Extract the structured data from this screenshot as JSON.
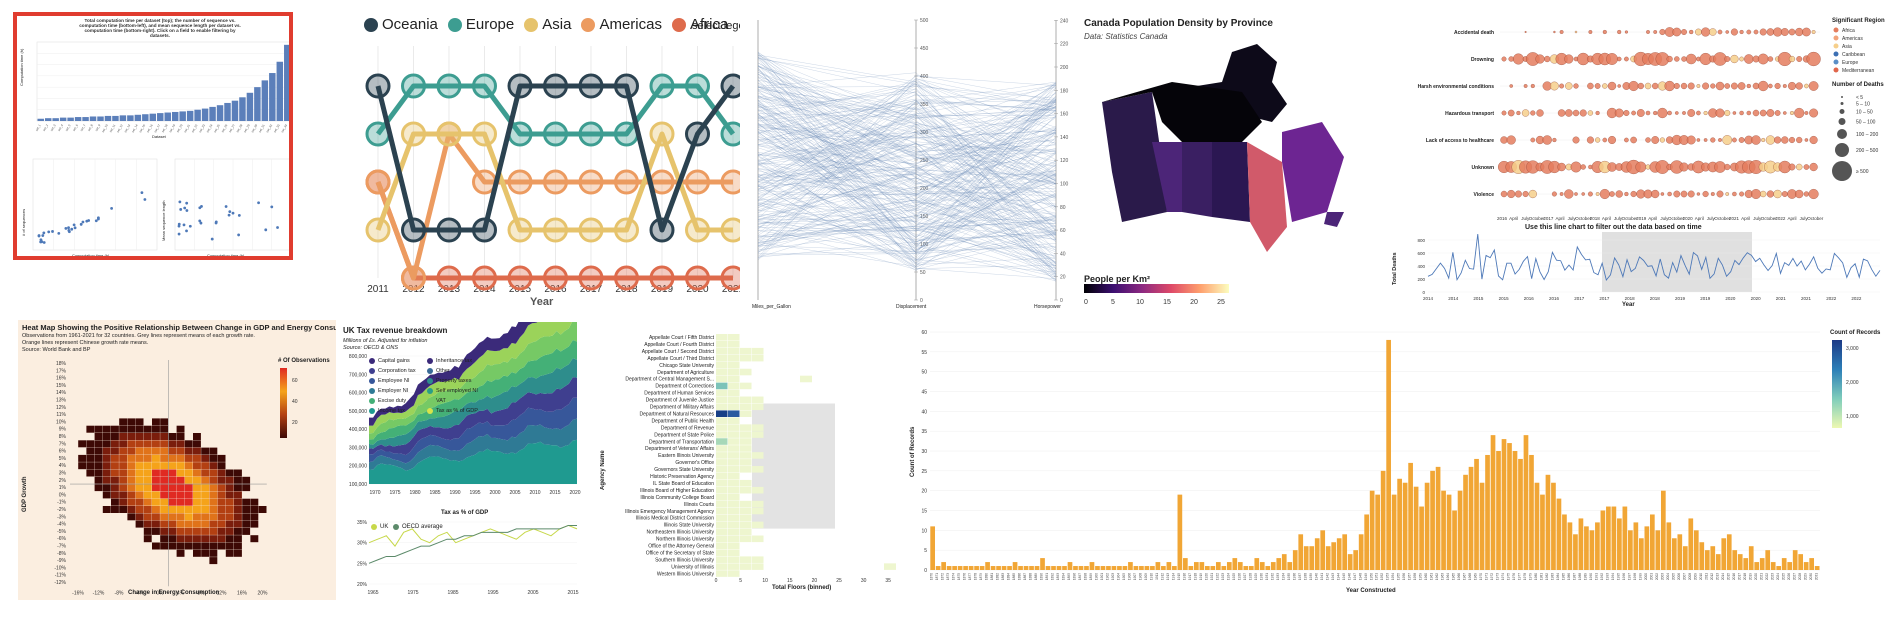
{
  "tiles": {
    "t1": {
      "title": "Total computation time per dataset (top); the number of sequence vs. computation time (bottom-left), and mean sequence length per dataset vs. computation time (bottom-right). Click on a field to enable filtering by datasets.",
      "bar_ylabel": "Computation time (h)",
      "bar_xlabel": "Dataset",
      "scatter1_ylabel": "# of sequences",
      "scatter1_xlabel": "Computation time (h)",
      "scatter2_ylabel": "Mean sequence length",
      "scatter2_xlabel": "Computation time (h)",
      "bar_values": [
        0.4,
        0.5,
        0.5,
        0.6,
        0.6,
        0.7,
        0.7,
        0.8,
        0.8,
        0.9,
        0.9,
        1,
        1,
        1.1,
        1.2,
        1.3,
        1.4,
        1.5,
        1.6,
        1.7,
        1.8,
        2,
        2.2,
        2.5,
        2.8,
        3.2,
        3.6,
        4.2,
        5,
        6,
        7.2,
        8.5,
        10.5,
        13.5
      ]
    },
    "t2": {
      "legend": [
        {
          "name": "Oceania",
          "color": "#2b4250"
        },
        {
          "name": "Europe",
          "color": "#3d9d91"
        },
        {
          "name": "Asia",
          "color": "#e6c36c"
        },
        {
          "name": "Americas",
          "color": "#ec9b60"
        },
        {
          "name": "Africa",
          "color": "#de6b4c"
        }
      ],
      "select_label": "select leger",
      "xlabel": "Year",
      "years": [
        "2011",
        "2012",
        "2013",
        "2014",
        "2015",
        "2016",
        "2017",
        "2018",
        "2019",
        "2020",
        "2021"
      ],
      "ranks": {
        "Oceania": [
          1,
          4,
          4,
          4,
          1,
          1,
          1,
          1,
          4,
          2,
          1
        ],
        "Europe": [
          2,
          1,
          1,
          1,
          2,
          2,
          2,
          2,
          1,
          1,
          2
        ],
        "Asia": [
          4,
          2,
          2,
          2,
          4,
          4,
          4,
          4,
          2,
          4,
          4
        ],
        "Americas": [
          3,
          5,
          2,
          3,
          3,
          3,
          3,
          3,
          3,
          3,
          3
        ],
        "Africa": [
          3,
          5,
          5,
          5,
          5,
          5,
          5,
          5,
          5,
          5,
          5
        ]
      }
    },
    "t3": {
      "axes": [
        "Miles_per_Gallon",
        "Displacement",
        "Horsepower"
      ],
      "mid_ticks": [
        "0",
        "50",
        "100",
        "150",
        "200",
        "250",
        "300",
        "350",
        "400",
        "450",
        "500"
      ],
      "right_ticks": [
        "0",
        "20",
        "40",
        "60",
        "80",
        "100",
        "120",
        "140",
        "160",
        "180",
        "200",
        "220",
        "240"
      ]
    },
    "t4": {
      "title": "Canada Population Density by Province",
      "subtitle": "Data: Statistics Canada",
      "legend_title": "People per Km²",
      "legend_ticks": [
        "0",
        "5",
        "10",
        "15",
        "20",
        "25"
      ]
    },
    "t5": {
      "categories": [
        "Accidental death",
        "Drowning",
        "Harsh environmental conditions",
        "Hazardous transport",
        "Lack of access to healthcare",
        "Unknown",
        "Violence"
      ],
      "legend_title": "Significant Region",
      "regions": [
        {
          "name": "Africa",
          "color": "#e47d5e"
        },
        {
          "name": "Americas",
          "color": "#f2a37b"
        },
        {
          "name": "Asia",
          "color": "#f6cf8b"
        },
        {
          "name": "Caribbean",
          "color": "#3c6fb3"
        },
        {
          "name": "Europe",
          "color": "#5a8fc7"
        },
        {
          "name": "Mediterranean",
          "color": "#e0664b"
        }
      ],
      "size_title": "Number of Deaths",
      "sizes": [
        "< 5",
        "5 – 10",
        "10 – 50",
        "50 – 100",
        "100 – 200",
        "200 – 500",
        "≥ 500"
      ],
      "top_ticks": [
        "2016",
        "April",
        "July",
        "October",
        "2017",
        "April",
        "July",
        "October",
        "2018",
        "April",
        "July",
        "October",
        "2019",
        "April",
        "July",
        "October",
        "2020",
        "April",
        "July",
        "October",
        "2021",
        "April",
        "July",
        "October",
        "2022",
        "April",
        "July",
        "October"
      ],
      "filter_title": "Use this line chart to filter out the data based on time",
      "line_ylabel": "Total Deaths",
      "line_xlabel": "Year",
      "line_yticks": [
        "0",
        "200",
        "400",
        "600",
        "800"
      ],
      "line_xticks": [
        "2014",
        "2014",
        "2015",
        "2015",
        "2016",
        "2016",
        "2017",
        "2017",
        "2018",
        "2018",
        "2019",
        "2019",
        "2020",
        "2020",
        "2021",
        "2021",
        "2022",
        "2022"
      ]
    },
    "t6": {
      "title": "Heat Map Showing the Positive Relationship Between Change in GDP and Energy Consumption",
      "note1": "Observations from 1961-2021 for 32 countries. Grey lines represent means of each growth rate.",
      "note2": "Orange lines represent Chinese growth rate means.",
      "source": "Source: World Bank and BP",
      "ylabel": "GDP Growth",
      "xlabel": "Change in Energy Consumption",
      "legend_title": "# Of Observations",
      "legend_ticks": [
        "60",
        "40",
        "20"
      ],
      "yticks": [
        "18%",
        "17%",
        "16%",
        "15%",
        "14%",
        "13%",
        "12%",
        "11%",
        "10%",
        "9%",
        "8%",
        "7%",
        "6%",
        "5%",
        "4%",
        "3%",
        "2%",
        "1%",
        "0%",
        "-1%",
        "-2%",
        "-3%",
        "-4%",
        "-5%",
        "-6%",
        "-7%",
        "-8%",
        "-9%",
        "-10%",
        "-11%",
        "-12%"
      ],
      "xticks": [
        "-16%",
        "-12%",
        "-8%",
        "-4%",
        "0%",
        "4%",
        "8%",
        "12%",
        "16%",
        "20%"
      ]
    },
    "t7": {
      "title": "UK Tax revenue breakdown",
      "subtitle": "Millions of £s. Adjusted for inflation",
      "source": "Source: OECD & ONS",
      "legend": [
        {
          "name": "Capital gains",
          "color": "#3b2a7a"
        },
        {
          "name": "Inheritance tax",
          "color": "#3b2a7a"
        },
        {
          "name": "Corporation tax",
          "color": "#3f3f8f"
        },
        {
          "name": "Other",
          "color": "#3a6a96"
        },
        {
          "name": "Employee NI",
          "color": "#37579a"
        },
        {
          "name": "Property taxes",
          "color": "#2e8d8c"
        },
        {
          "name": "Employer NI",
          "color": "#2f7a95"
        },
        {
          "name": "Self employed NI",
          "color": "#2b9e87"
        },
        {
          "name": "Excise duty",
          "color": "#44b077"
        },
        {
          "name": "VAT",
          "color": "#76c965"
        },
        {
          "name": "Income tax",
          "color": "#1f9a90"
        },
        {
          "name": "Tax as % of GDP",
          "color": "#d7e34b"
        }
      ],
      "yticks": [
        "800,000",
        "700,000",
        "600,000",
        "500,000",
        "400,000",
        "300,000",
        "200,000",
        "100,000"
      ],
      "xticks": [
        "1970",
        "1975",
        "1980",
        "1985",
        "1990",
        "1995",
        "2000",
        "2005",
        "2010",
        "2015",
        "2020"
      ],
      "sub_title": "Tax as % of GDP",
      "sub_legend": [
        {
          "name": "UK",
          "color": "#c7d84a"
        },
        {
          "name": "OECD average",
          "color": "#5c8a6a"
        }
      ],
      "sub_yticks": [
        "35%",
        "30%",
        "25%",
        "20%"
      ],
      "sub_xticks": [
        "1965",
        "1975",
        "1985",
        "1995",
        "2005",
        "2015"
      ],
      "uk": [
        30,
        31,
        32,
        29,
        33,
        34,
        31,
        30,
        32,
        33,
        30,
        31,
        32,
        33,
        34,
        33,
        32,
        31,
        33,
        34,
        33,
        32,
        34,
        35,
        34
      ],
      "oecd": [
        24,
        25,
        26,
        26,
        27,
        28,
        29,
        29,
        30,
        31,
        31,
        32,
        32,
        33,
        33,
        33,
        33,
        34,
        34,
        34,
        34,
        34,
        34,
        35,
        35
      ]
    },
    "t8": {
      "ylabel": "Agency Name",
      "xlabel": "Total Floors (binned)",
      "xticks": [
        "0",
        "5",
        "10",
        "15",
        "20",
        "25",
        "30",
        "35"
      ],
      "agencies": [
        "Appellate Court / Fifth District",
        "Appellate Court / Fourth District",
        "Appellate Court / Second District",
        "Appellate Court / Third District",
        "Chicago State University",
        "Department of Agriculture",
        "Department of Central Management S...",
        "Department of Corrections",
        "Department of Human Services",
        "Department of Juvenile Justice",
        "Department of Military Affairs",
        "Department of Natural Resources",
        "Department of Public Health",
        "Department of Revenue",
        "Department of State Police",
        "Department of Transportation",
        "Department of Veterans' Affairs",
        "Eastern Illinois University",
        "Governor's Office",
        "Governors State University",
        "Historic Preservation Agency",
        "IL State Board of Education",
        "Illinois Board of Higher Education",
        "Illinois Community College Board",
        "Illinois Courts",
        "Illinois Emergency Management Agency",
        "Illinois Medical District Commission",
        "Illinois State University",
        "Northeastern Illinois University",
        "Northern Illinois University",
        "Office of the Attorney General",
        "Office of the Secretary of State",
        "Southern Illinois University",
        "University of Illinois",
        "Western Illinois University"
      ]
    },
    "t9": {
      "ylabel": "Count of Records",
      "xlabel": "Year Constructed",
      "yticks": [
        "0",
        "5",
        "10",
        "15",
        "20",
        "25",
        "30",
        "35",
        "40",
        "45",
        "50",
        "55",
        "60"
      ],
      "legend_title": "Count of Records",
      "legend_ticks": [
        "3,000",
        "2,000",
        "1,000"
      ],
      "values": [
        11,
        1,
        2,
        1,
        1,
        1,
        1,
        1,
        1,
        1,
        2,
        1,
        1,
        1,
        1,
        2,
        1,
        1,
        1,
        1,
        3,
        1,
        1,
        1,
        1,
        2,
        1,
        1,
        1,
        2,
        1,
        1,
        1,
        1,
        1,
        1,
        2,
        1,
        1,
        1,
        1,
        2,
        1,
        2,
        1,
        19,
        3,
        1,
        2,
        2,
        1,
        1,
        2,
        1,
        2,
        3,
        2,
        1,
        1,
        3,
        2,
        1,
        2,
        3,
        4,
        2,
        5,
        9,
        6,
        6,
        8,
        10,
        6,
        7,
        8,
        9,
        4,
        5,
        9,
        14,
        20,
        19,
        25,
        58,
        19,
        23,
        22,
        27,
        21,
        16,
        22,
        25,
        26,
        20,
        19,
        15,
        20,
        24,
        26,
        28,
        22,
        29,
        34,
        30,
        33,
        32,
        30,
        28,
        34,
        29,
        22,
        19,
        24,
        22,
        18,
        14,
        12,
        9,
        13,
        11,
        10,
        12,
        15,
        16,
        16,
        13,
        16,
        10,
        12,
        8,
        11,
        14,
        10,
        20,
        12,
        8,
        9,
        6,
        13,
        10,
        7,
        5,
        6,
        4,
        8,
        9,
        5,
        4,
        3,
        6,
        2,
        3,
        5,
        2,
        1,
        3,
        2,
        5,
        4,
        2,
        3,
        1
      ]
    }
  }
}
